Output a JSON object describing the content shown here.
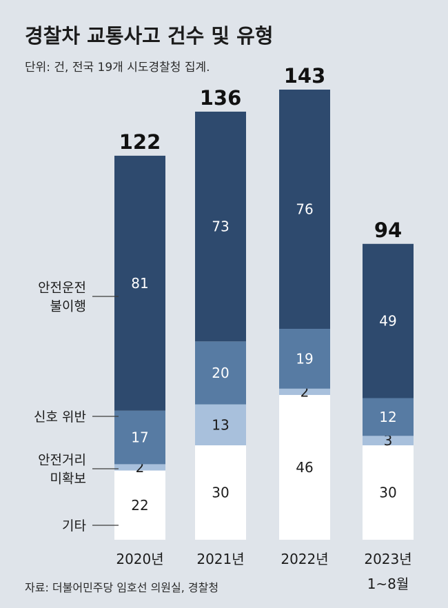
{
  "chart_data": {
    "type": "bar",
    "stacked": true,
    "title": "경찰차 교통사고 건수 및 유형",
    "subtitle": "단위: 건, 전국 19개 시도경찰청 집계.",
    "source": "자료: 더불어민주당 임호선 의원실, 경찰청",
    "categories": [
      {
        "label": "2020년",
        "sublabel": ""
      },
      {
        "label": "2021년",
        "sublabel": ""
      },
      {
        "label": "2022년",
        "sublabel": ""
      },
      {
        "label": "2023년",
        "sublabel": "1~8월"
      }
    ],
    "totals": [
      122,
      136,
      143,
      94
    ],
    "series": [
      {
        "name": "기타",
        "values": [
          22,
          30,
          46,
          30
        ],
        "color": "#ffffff",
        "text_color": "#1b1b1b"
      },
      {
        "name": "안전거리\n미확보",
        "values": [
          2,
          13,
          2,
          3
        ],
        "color": "#a8c0dc",
        "text_color": "#1b1b1b"
      },
      {
        "name": "신호 위반",
        "values": [
          17,
          20,
          19,
          12
        ],
        "color": "#577ba3",
        "text_color": "#ffffff"
      },
      {
        "name": "안전운전\n불이행",
        "values": [
          81,
          73,
          76,
          49
        ],
        "color": "#2e4a6e",
        "text_color": "#ffffff"
      }
    ],
    "ylim": [
      0,
      143
    ]
  }
}
